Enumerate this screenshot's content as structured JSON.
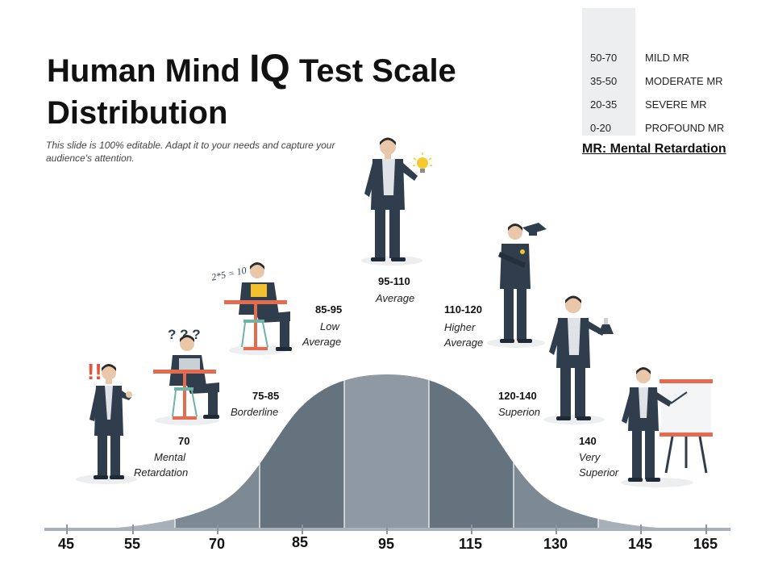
{
  "title": {
    "part1": "Human Mind ",
    "part2": "IQ",
    "part3": " Test Scale",
    "line2": "Distribution"
  },
  "subtitle": "This slide is 100% editable. Adapt it to your needs and capture your audience's attention.",
  "mr_table": {
    "rows": [
      {
        "range": "50-70",
        "label": "MILD MR"
      },
      {
        "range": "35-50",
        "label": "MODERATE MR"
      },
      {
        "range": "20-35",
        "label": "SEVERE MR"
      },
      {
        "range": "0-20",
        "label": "PROFOUND MR"
      }
    ],
    "note": "MR: Mental Retardation"
  },
  "axis_ticks": [
    "45",
    "55",
    "70",
    "85",
    "95",
    "115",
    "130",
    "145",
    "165"
  ],
  "categories": [
    {
      "range": "70",
      "desc": [
        "Mental",
        "Retardation"
      ]
    },
    {
      "range": "75-85",
      "desc": [
        "Borderline"
      ]
    },
    {
      "range": "85-95",
      "desc": [
        "Low",
        "Average"
      ]
    },
    {
      "range": "95-110",
      "desc": [
        "Average"
      ]
    },
    {
      "range": "110-120",
      "desc": [
        "Higher",
        "Average"
      ]
    },
    {
      "range": "120-140",
      "desc": [
        "Superion"
      ]
    },
    {
      "range": "140",
      "desc": [
        "Very",
        "Superior"
      ]
    }
  ],
  "illustration_texts": {
    "math": "2*5 = 10",
    "puzzled": "? ? ?",
    "alarm": "!!"
  },
  "colors": {
    "band_light": "#a7b0b9",
    "band_mid": "#7d8993",
    "band_dark": "#65737e",
    "band_center": "#8e99a3",
    "suit": "#2f3d4c",
    "table_top": "#e36b4f"
  }
}
